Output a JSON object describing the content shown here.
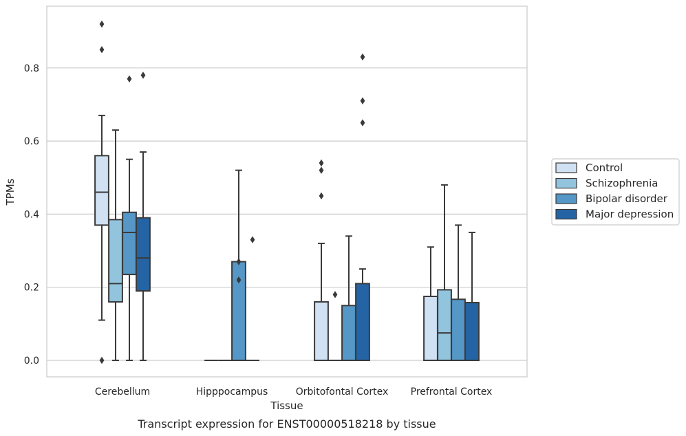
{
  "chart_data": {
    "type": "box",
    "title": "",
    "caption": "Transcript expression for ENST00000518218 by tissue",
    "xlabel": "Tissue",
    "ylabel": "TPMs",
    "ylim": [
      -0.045,
      0.965
    ],
    "yticks": [
      "0.0",
      "0.2",
      "0.4",
      "0.6",
      "0.8"
    ],
    "grid": "horizontal",
    "legend_position": "right",
    "categories": [
      "Cerebellum",
      "Hipppocampus",
      "Orbitofontal Cortex",
      "Prefrontal Cortex"
    ],
    "series": [
      {
        "name": "Control",
        "color": "#cfe1f2",
        "boxes": [
          {
            "q1": 0.37,
            "median": 0.46,
            "q3": 0.56,
            "whisker_low": 0.11,
            "whisker_high": 0.67,
            "outliers": [
              0.92,
              0.85,
              0.0
            ]
          },
          {
            "q1": 0.0,
            "median": 0.0,
            "q3": 0.0,
            "whisker_low": 0.0,
            "whisker_high": 0.0,
            "outliers": []
          },
          {
            "q1": 0.0,
            "median": 0.0,
            "q3": 0.16,
            "whisker_low": 0.0,
            "whisker_high": 0.32,
            "outliers": [
              0.54,
              0.52,
              0.45
            ]
          },
          {
            "q1": 0.0,
            "median": 0.0,
            "q3": 0.175,
            "whisker_low": 0.0,
            "whisker_high": 0.31,
            "outliers": []
          }
        ]
      },
      {
        "name": "Schizophrenia",
        "color": "#93c4de",
        "boxes": [
          {
            "q1": 0.16,
            "median": 0.21,
            "q3": 0.385,
            "whisker_low": 0.0,
            "whisker_high": 0.63,
            "outliers": []
          },
          {
            "q1": 0.0,
            "median": 0.0,
            "q3": 0.0,
            "whisker_low": 0.0,
            "whisker_high": 0.0,
            "outliers": []
          },
          {
            "q1": 0.0,
            "median": 0.0,
            "q3": 0.0,
            "whisker_low": 0.0,
            "whisker_high": 0.0,
            "outliers": [
              0.18
            ]
          },
          {
            "q1": 0.0,
            "median": 0.075,
            "q3": 0.193,
            "whisker_low": 0.0,
            "whisker_high": 0.48,
            "outliers": []
          }
        ]
      },
      {
        "name": "Bipolar disorder",
        "color": "#5597c6",
        "boxes": [
          {
            "q1": 0.235,
            "median": 0.35,
            "q3": 0.405,
            "whisker_low": 0.0,
            "whisker_high": 0.55,
            "outliers": [
              0.77
            ]
          },
          {
            "q1": 0.0,
            "median": 0.0,
            "q3": 0.27,
            "whisker_low": 0.0,
            "whisker_high": 0.52,
            "outliers": [
              0.27,
              0.22
            ]
          },
          {
            "q1": 0.0,
            "median": 0.0,
            "q3": 0.15,
            "whisker_low": 0.0,
            "whisker_high": 0.34,
            "outliers": []
          },
          {
            "q1": 0.0,
            "median": 0.0,
            "q3": 0.167,
            "whisker_low": 0.0,
            "whisker_high": 0.37,
            "outliers": []
          }
        ]
      },
      {
        "name": "Major depression",
        "color": "#2464a4",
        "boxes": [
          {
            "q1": 0.19,
            "median": 0.28,
            "q3": 0.39,
            "whisker_low": 0.0,
            "whisker_high": 0.57,
            "outliers": [
              0.78
            ]
          },
          {
            "q1": 0.0,
            "median": 0.0,
            "q3": 0.0,
            "whisker_low": 0.0,
            "whisker_high": 0.0,
            "outliers": [
              0.33
            ]
          },
          {
            "q1": 0.0,
            "median": 0.0,
            "q3": 0.21,
            "whisker_low": 0.0,
            "whisker_high": 0.25,
            "outliers": [
              0.83,
              0.71,
              0.65
            ]
          },
          {
            "q1": 0.0,
            "median": 0.0,
            "q3": 0.158,
            "whisker_low": 0.0,
            "whisker_high": 0.35,
            "outliers": []
          }
        ]
      }
    ]
  }
}
